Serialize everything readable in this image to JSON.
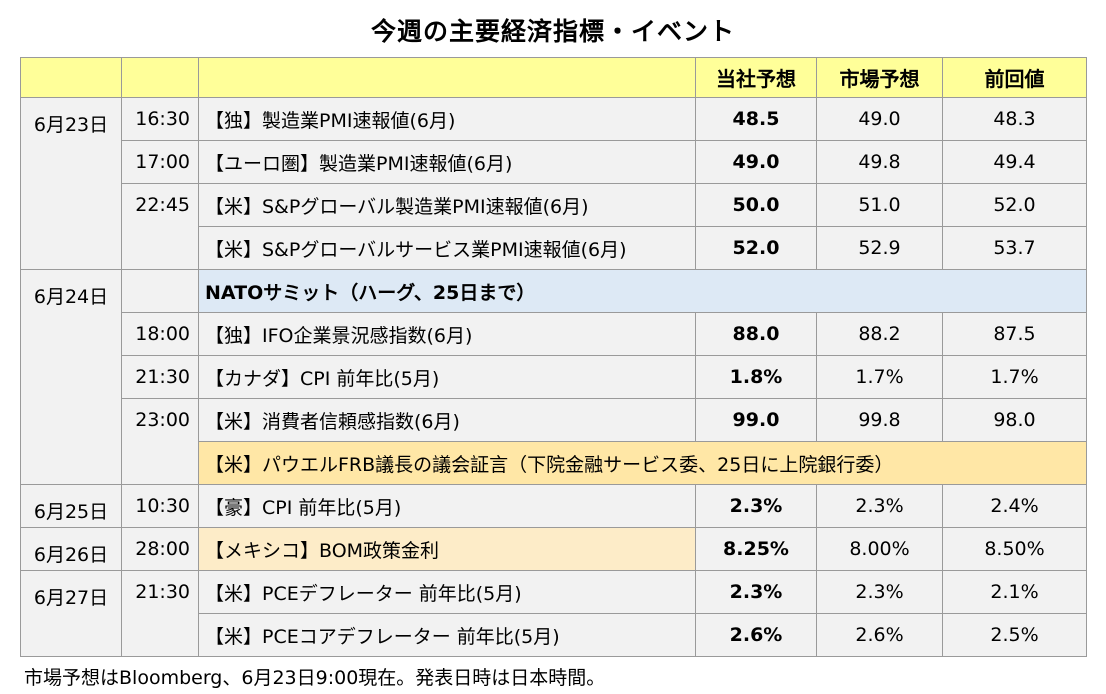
{
  "title": "今週の主要経済指標・イベント",
  "headers": {
    "date": "",
    "time": "",
    "event": "",
    "company": "当社予想",
    "market": "市場予想",
    "previous": "前回値"
  },
  "rows": [
    {
      "date": "6月23日",
      "time": "16:30",
      "event": "【独】製造業PMI速報値(6月)",
      "company": "48.5",
      "market": "49.0",
      "previous": "48.3"
    },
    {
      "date": "",
      "time": "17:00",
      "event": "【ユーロ圏】製造業PMI速報値(6月)",
      "company": "49.0",
      "market": "49.8",
      "previous": "49.4"
    },
    {
      "date": "",
      "time": "22:45",
      "event": "【米】S&Pグローバル製造業PMI速報値(6月)",
      "company": "50.0",
      "market": "51.0",
      "previous": "52.0"
    },
    {
      "date": "",
      "time": "",
      "event": "【米】S&Pグローバルサービス業PMI速報値(6月)",
      "company": "52.0",
      "market": "52.9",
      "previous": "53.7"
    },
    {
      "date": "6月24日",
      "time": "",
      "event": "NATOサミット（ハーグ、25日まで）"
    },
    {
      "date": "",
      "time": "18:00",
      "event": "【独】IFO企業景況感指数(6月)",
      "company": "88.0",
      "market": "88.2",
      "previous": "87.5"
    },
    {
      "date": "",
      "time": "21:30",
      "event": "【カナダ】CPI 前年比(5月)",
      "company": "1.8%",
      "market": "1.7%",
      "previous": "1.7%"
    },
    {
      "date": "",
      "time": "23:00",
      "event": "【米】消費者信頼感指数(6月)",
      "company": "99.0",
      "market": "99.8",
      "previous": "98.0"
    },
    {
      "date": "",
      "time": "",
      "event": "【米】パウエルFRB議長の議会証言（下院金融サービス委、25日に上院銀行委）"
    },
    {
      "date": "6月25日",
      "time": "10:30",
      "event": "【豪】CPI 前年比(5月)",
      "company": "2.3%",
      "market": "2.3%",
      "previous": "2.4%"
    },
    {
      "date": "6月26日",
      "time": "28:00",
      "event": "【メキシコ】BOM政策金利",
      "company": "8.25%",
      "market": "8.00%",
      "previous": "8.50%"
    },
    {
      "date": "6月27日",
      "time": "21:30",
      "event": "【米】PCEデフレーター 前年比(5月)",
      "company": "2.3%",
      "market": "2.3%",
      "previous": "2.1%"
    },
    {
      "date": "",
      "time": "",
      "event": "【米】PCEコアデフレーター 前年比(5月)",
      "company": "2.6%",
      "market": "2.6%",
      "previous": "2.5%"
    }
  ],
  "note": "市場予想はBloomberg、6月23日9:00現在。発表日時は日本時間。"
}
